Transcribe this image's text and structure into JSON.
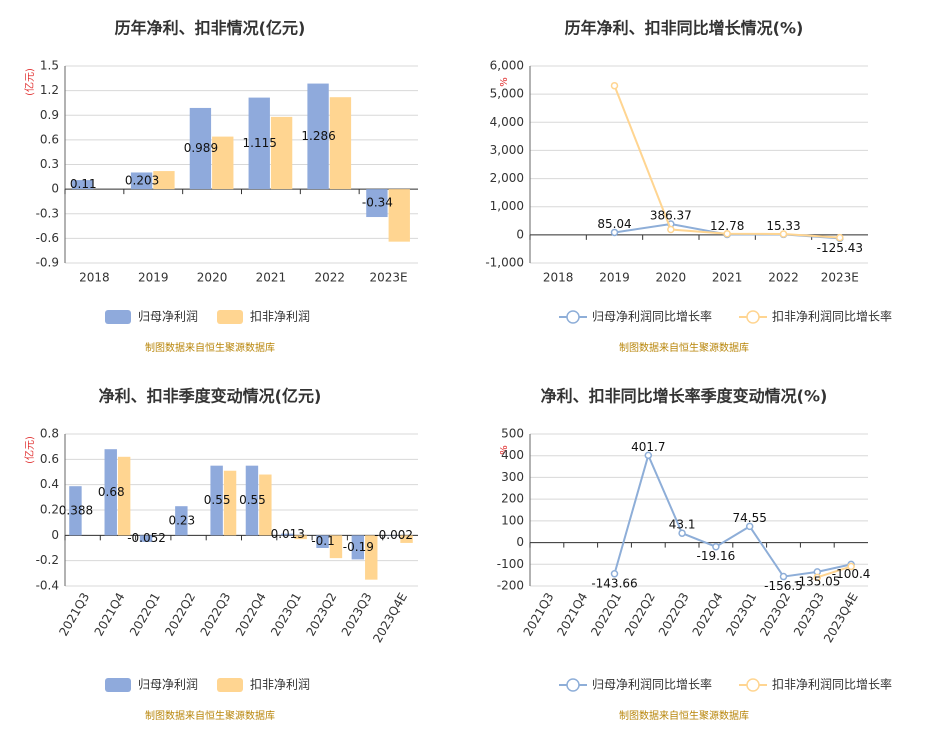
{
  "chart_data": [
    {
      "type": "bar",
      "title": "历年净利、扣非情况(亿元)",
      "y_label": "(亿元)",
      "categories": [
        "2018",
        "2019",
        "2020",
        "2021",
        "2022",
        "2023E"
      ],
      "series": [
        {
          "name": "归母净利润",
          "color": "#8faadc",
          "values": [
            0.11,
            0.203,
            0.989,
            1.115,
            1.286,
            -0.34
          ]
        },
        {
          "name": "扣非净利润",
          "color": "#ffd591",
          "values": [
            null,
            0.22,
            0.64,
            0.88,
            1.12,
            -0.64
          ]
        }
      ],
      "ylim": [
        -0.9,
        1.5
      ],
      "yticks": [
        -0.9,
        -0.6,
        -0.3,
        0,
        0.3,
        0.6,
        0.9,
        1.2,
        1.5
      ],
      "grid": true,
      "source": "制图数据来自恒生聚源数据库"
    },
    {
      "type": "line",
      "title": "历年净利、扣非同比增长情况(%)",
      "y_label": "%",
      "categories": [
        "2018",
        "2019",
        "2020",
        "2021",
        "2022",
        "2023E"
      ],
      "series": [
        {
          "name": "归母净利润同比增长率",
          "color": "#8eaed8",
          "values": [
            null,
            85.04,
            386.37,
            12.78,
            15.33,
            -125.43
          ]
        },
        {
          "name": "扣非净利润同比增长率",
          "color": "#ffd591",
          "values": [
            null,
            5300,
            190,
            40,
            30,
            -100
          ]
        }
      ],
      "ylim": [
        -1000,
        6000
      ],
      "yticks": [
        {
          "value": -1000,
          "label": "-1,000"
        },
        0,
        {
          "value": 1000,
          "label": "1,000"
        },
        {
          "value": 2000,
          "label": "2,000"
        },
        {
          "value": 3000,
          "label": "3,000"
        },
        {
          "value": 4000,
          "label": "4,000"
        },
        {
          "value": 5000,
          "label": "5,000"
        },
        {
          "value": 6000,
          "label": "6,000"
        }
      ],
      "grid": true,
      "source": "制图数据来自恒生聚源数据库"
    },
    {
      "type": "bar",
      "title": "净利、扣非季度变动情况(亿元)",
      "y_label": "(亿元)",
      "categories": [
        "2021Q3",
        "2021Q4",
        "2022Q1",
        "2022Q2",
        "2022Q3",
        "2022Q4",
        "2023Q1",
        "2023Q2",
        "2023Q3",
        "2023Q4E"
      ],
      "series": [
        {
          "name": "归母净利润",
          "color": "#8faadc",
          "values": [
            0.388,
            0.68,
            -0.052,
            0.23,
            0.55,
            0.55,
            0.013,
            -0.1,
            -0.19,
            -0.002
          ]
        },
        {
          "name": "扣非净利润",
          "color": "#ffd591",
          "values": [
            null,
            0.62,
            null,
            null,
            0.51,
            0.48,
            -0.03,
            -0.18,
            -0.35,
            -0.06
          ]
        }
      ],
      "ylim": [
        -0.4,
        0.8
      ],
      "yticks": [
        -0.4,
        -0.2,
        0,
        0.2,
        0.4,
        0.6,
        0.8
      ],
      "grid": true,
      "source": "制图数据来自恒生聚源数据库"
    },
    {
      "type": "line",
      "title": "净利、扣非同比增长率季度变动情况(%)",
      "y_label": "%",
      "categories": [
        "2021Q3",
        "2021Q4",
        "2022Q1",
        "2022Q2",
        "2022Q3",
        "2022Q4",
        "2023Q1",
        "2023Q2",
        "2023Q3",
        "2023Q4E"
      ],
      "series": [
        {
          "name": "归母净利润同比增长率",
          "color": "#8eaed8",
          "values": [
            null,
            null,
            -143.66,
            401.7,
            43.1,
            -19.16,
            74.55,
            -156.5,
            -135.05,
            -100.4
          ]
        },
        {
          "name": "扣非净利润同比增长率",
          "color": "#ffd591",
          "values": [
            null,
            null,
            null,
            null,
            null,
            null,
            null,
            null,
            -160,
            -110
          ]
        }
      ],
      "ylim": [
        -200,
        500
      ],
      "yticks": [
        -200,
        -100,
        0,
        100,
        200,
        300,
        400,
        500
      ],
      "grid": true,
      "source": "制图数据来自恒生聚源数据库"
    }
  ]
}
